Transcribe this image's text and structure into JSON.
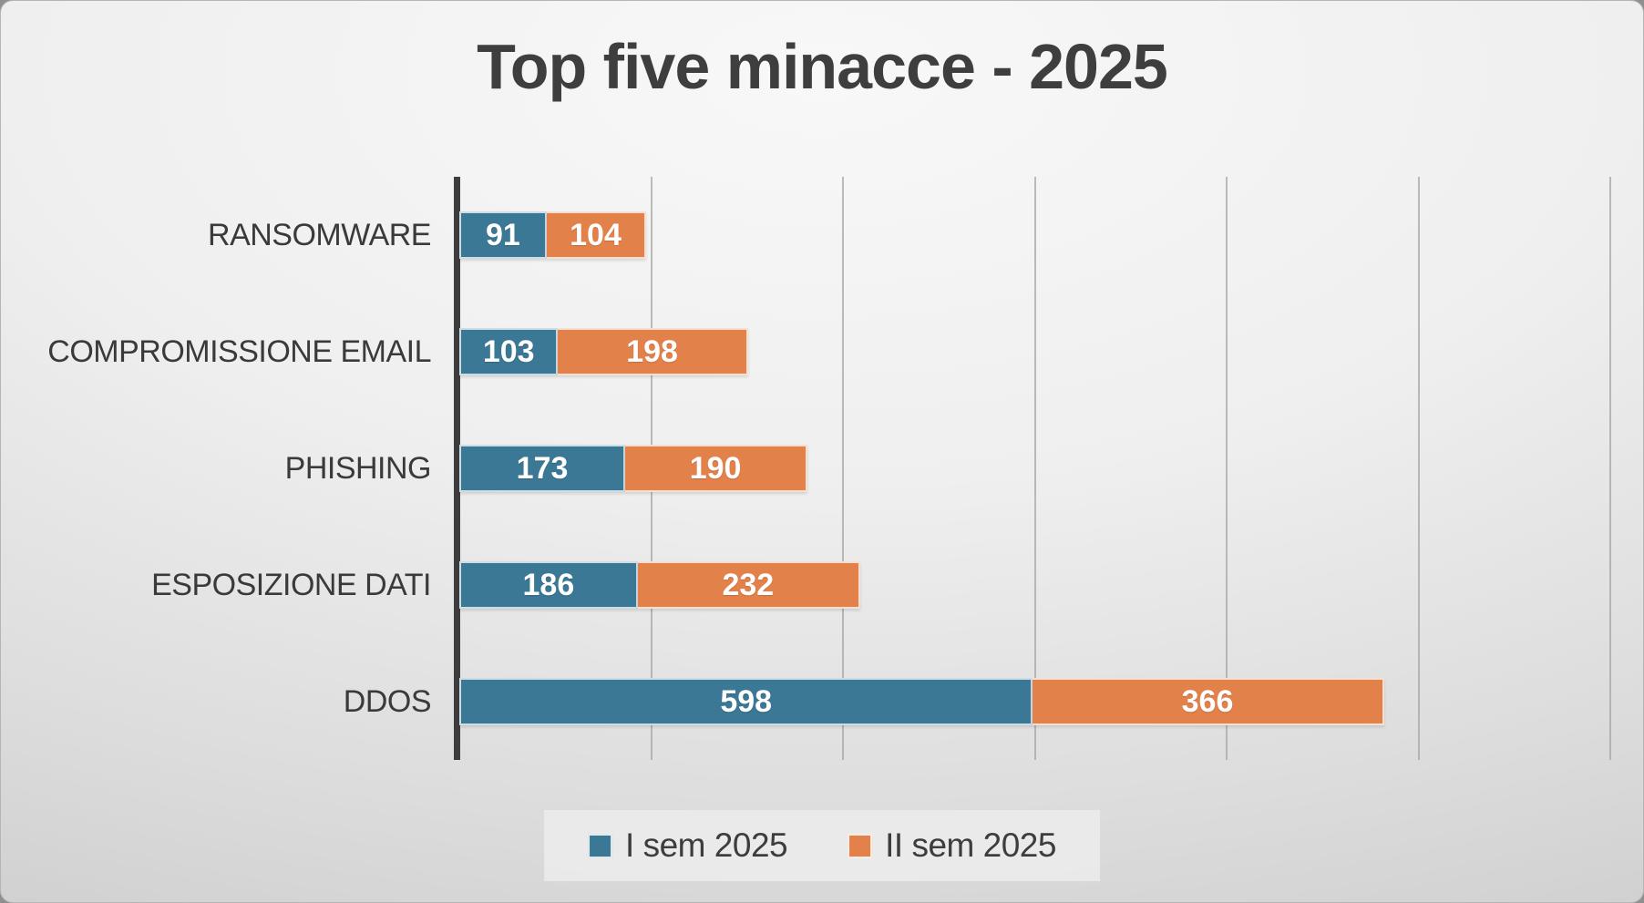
{
  "chart_data": {
    "type": "bar",
    "orientation": "horizontal",
    "stacked": true,
    "title": "Top five minacce - 2025",
    "categories": [
      "RANSOMWARE",
      "COMPROMISSIONE EMAIL",
      "PHISHING",
      "ESPOSIZIONE DATI",
      "DDOS"
    ],
    "series": [
      {
        "name": "I sem 2025",
        "color": "#3A7895",
        "values": [
          91,
          103,
          173,
          186,
          598
        ]
      },
      {
        "name": "II sem 2025",
        "color": "#E3814A",
        "values": [
          104,
          198,
          190,
          232,
          366
        ]
      }
    ],
    "xlim": [
      0,
      1200
    ],
    "gridline_step": 200,
    "grid": "vertical",
    "xlabel": "",
    "ylabel": "",
    "axis_tick_labels": "none",
    "value_labels": "inside-center-white",
    "legend_position": "bottom-center"
  },
  "colors": {
    "title_text": "#3e3e3e",
    "category_text": "#3a3a3a",
    "value_text": "#ffffff",
    "axis_line": "#3d3d3d",
    "gridline": "#a6a6a6",
    "legend_background": "#ebebeb",
    "legend_text": "#3d3d3d"
  }
}
